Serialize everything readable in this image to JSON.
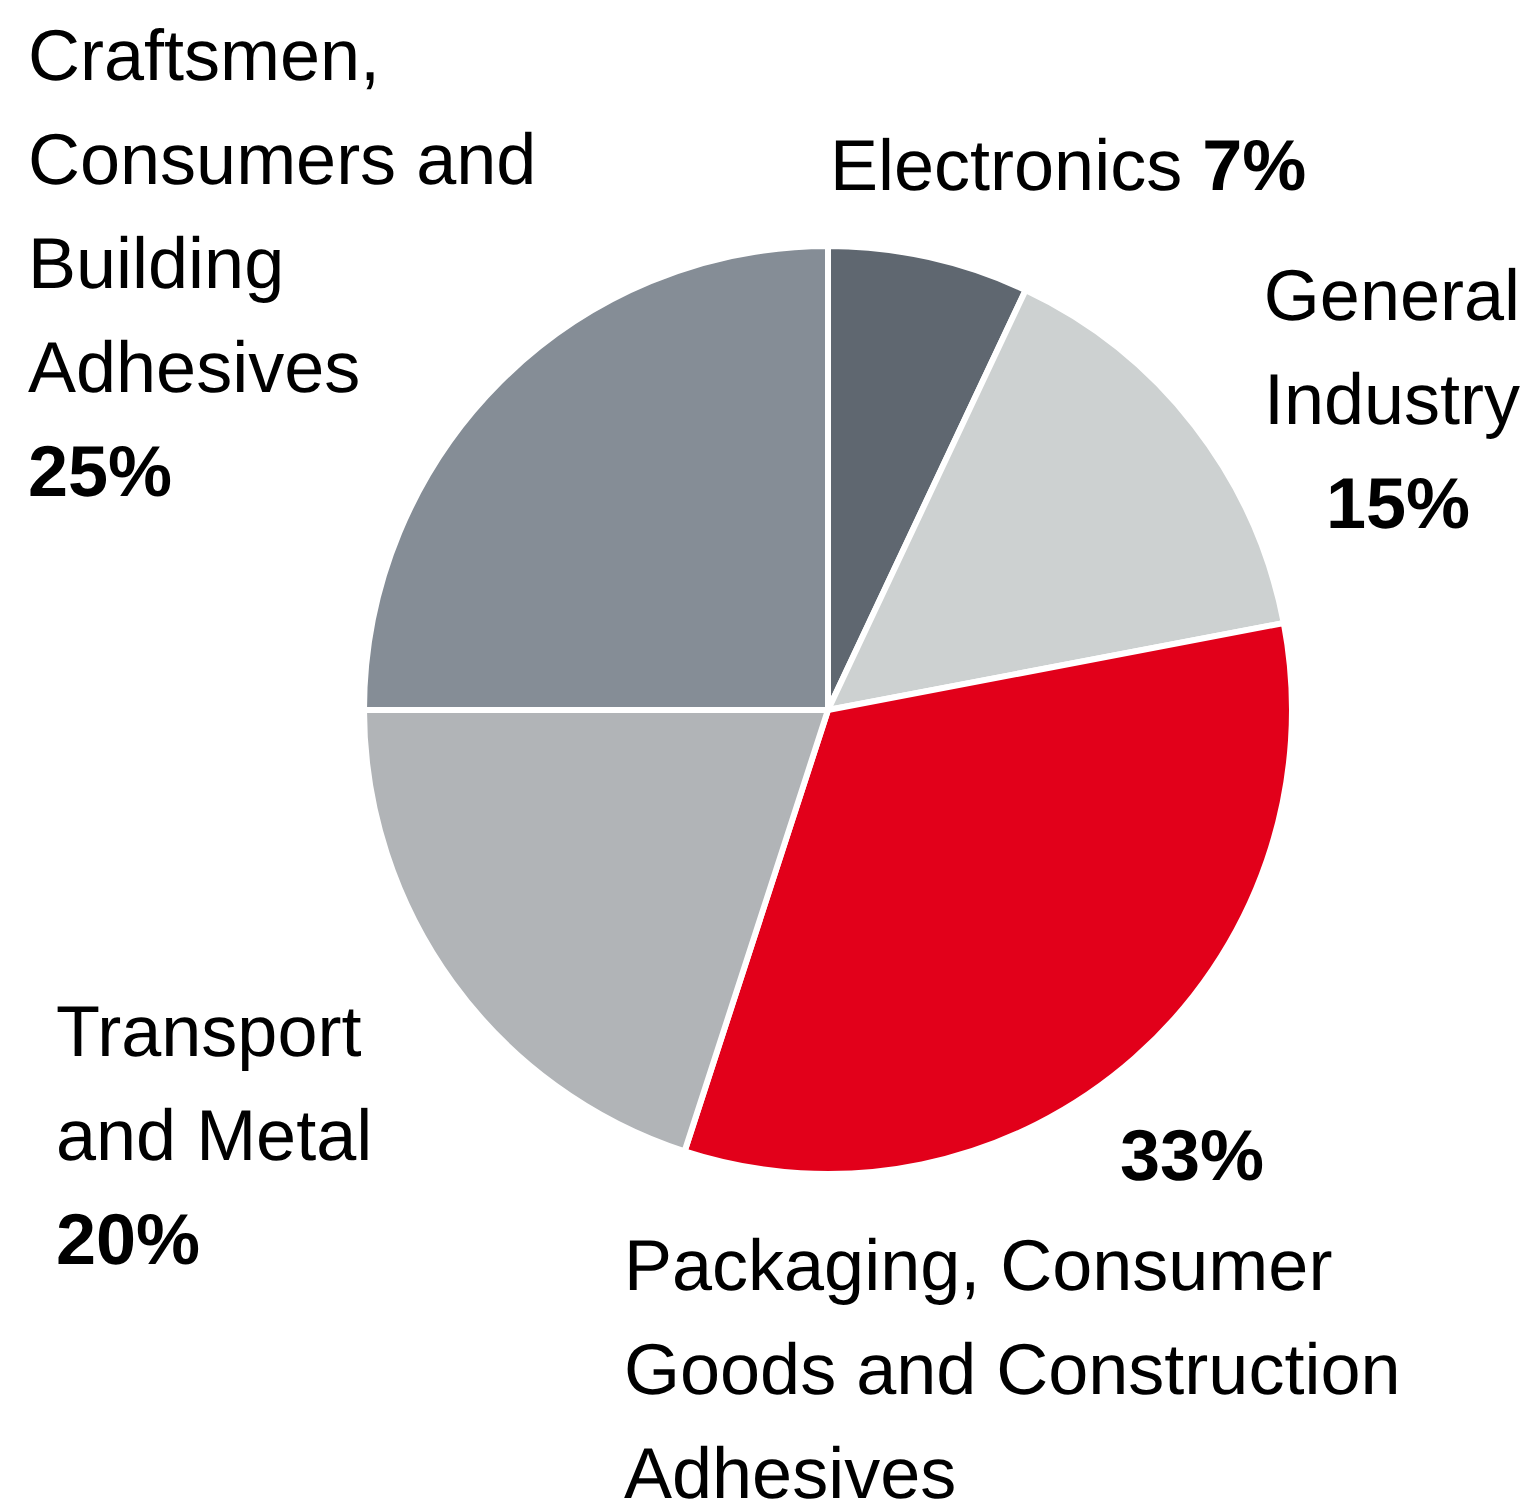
{
  "chart_data": {
    "type": "pie",
    "categories": [
      "Electronics",
      "General Industry",
      "Packaging, Consumer Goods and Construction Adhesives",
      "Transport and Metal",
      "Craftsmen, Consumers and Building Adhesives"
    ],
    "values": [
      7,
      15,
      33,
      20,
      25
    ],
    "colors": [
      "#5f6770",
      "#cdd1d1",
      "#e2001a",
      "#b1b4b7",
      "#858d96"
    ],
    "value_labels": [
      "7%",
      "15%",
      "33%",
      "20%",
      "25%"
    ]
  }
}
